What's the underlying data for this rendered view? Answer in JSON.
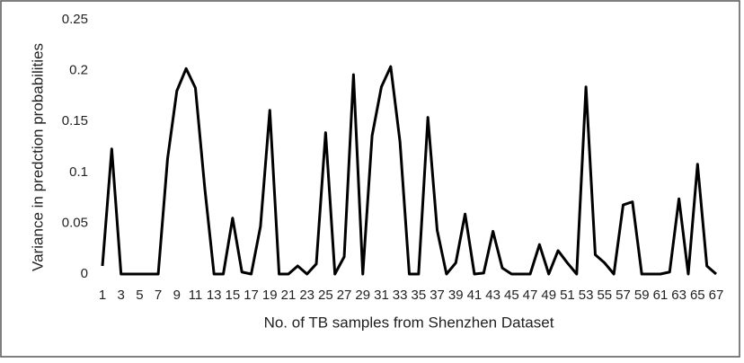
{
  "chart_data": {
    "type": "line",
    "xlabel": "No. of TB samples from Shenzhen Dataset",
    "ylabel": "Variance in predction probabilities",
    "categories": [
      1,
      null,
      3,
      null,
      5,
      null,
      7,
      null,
      9,
      null,
      11,
      null,
      13,
      null,
      15,
      null,
      17,
      null,
      19,
      null,
      21,
      null,
      23,
      null,
      25,
      null,
      27,
      null,
      29,
      null,
      31,
      null,
      33,
      null,
      35,
      null,
      37,
      null,
      39,
      null,
      41,
      null,
      43,
      null,
      45,
      null,
      47,
      null,
      49,
      null,
      51,
      null,
      53,
      null,
      55,
      null,
      57,
      null,
      59,
      null,
      61,
      null,
      63,
      null,
      65,
      null,
      67
    ],
    "series": [
      {
        "name": "Variance",
        "color": "#000000",
        "values": [
          0.008,
          0.123,
          0,
          0,
          0,
          0,
          0,
          0.113,
          0.18,
          0.202,
          0.183,
          0.085,
          0,
          0,
          0.055,
          0.002,
          0,
          0.047,
          0.161,
          0,
          0,
          0.008,
          0,
          0.01,
          0.139,
          0,
          0.017,
          0.196,
          0,
          0.136,
          0.184,
          0.204,
          0.13,
          0,
          0,
          0.154,
          0.043,
          0,
          0.011,
          0.059,
          0,
          0.001,
          0.042,
          0.006,
          0,
          0,
          0,
          0.029,
          0,
          0.023,
          0.011,
          0,
          0.184,
          0.019,
          0.011,
          0,
          0.068,
          0.071,
          0,
          0,
          0,
          0.002,
          0.074,
          0,
          0.108,
          0.008,
          0
        ]
      }
    ],
    "ylim": [
      0,
      0.25
    ],
    "yticks": [
      0,
      0.05,
      0.1,
      0.15,
      0.2,
      0.25
    ],
    "grid": false
  }
}
